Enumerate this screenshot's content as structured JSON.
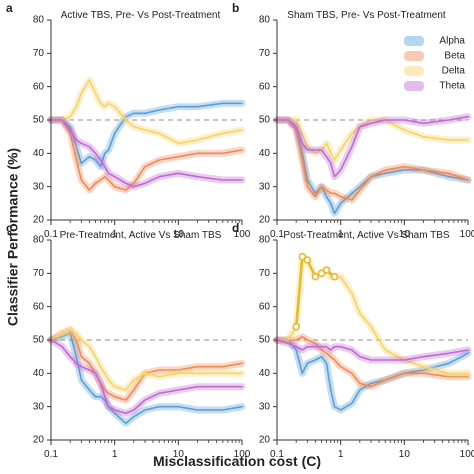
{
  "figure": {
    "ylabel": "Classifier Performance (%)",
    "xlabel": "Misclassification cost (C)"
  },
  "legend": [
    {
      "name": "Alpha",
      "color": "#5a9fd6"
    },
    {
      "name": "Beta",
      "color": "#f08a57"
    },
    {
      "name": "Delta",
      "color": "#f6d36a"
    },
    {
      "name": "Theta",
      "color": "#c06ad4"
    }
  ],
  "chart_data": [
    {
      "type": "line",
      "letter": "a",
      "title": "Active TBS, Pre- Vs Post-Treatment",
      "xscale": "log",
      "xlim": [
        0.1,
        100
      ],
      "ylim": [
        20,
        80
      ],
      "x_tick_labels": [
        "0.1",
        "1",
        "10",
        "100"
      ],
      "y_tick_labels": [
        "20",
        "30",
        "40",
        "50",
        "60",
        "70",
        "80"
      ],
      "chance_level": 50,
      "series": [
        {
          "name": "Alpha",
          "x": [
            0.1,
            0.15,
            0.2,
            0.25,
            0.3,
            0.4,
            0.5,
            0.6,
            0.7,
            0.8,
            1,
            1.5,
            2,
            3,
            5,
            10,
            20,
            50,
            100
          ],
          "y": [
            50,
            50,
            48,
            42,
            37,
            39,
            38,
            36,
            40,
            41,
            46,
            51,
            52,
            52,
            53,
            54,
            54,
            55,
            55
          ]
        },
        {
          "name": "Beta",
          "x": [
            0.1,
            0.15,
            0.2,
            0.25,
            0.3,
            0.4,
            0.5,
            0.6,
            0.7,
            0.8,
            1,
            1.5,
            2,
            3,
            5,
            10,
            20,
            50,
            100
          ],
          "y": [
            50,
            50,
            46,
            38,
            32,
            29,
            31,
            32,
            33,
            32,
            30,
            29,
            31,
            36,
            38,
            39,
            40,
            40,
            41
          ]
        },
        {
          "name": "Delta",
          "x": [
            0.1,
            0.15,
            0.2,
            0.25,
            0.3,
            0.4,
            0.5,
            0.6,
            0.7,
            0.8,
            1,
            1.5,
            2,
            3,
            5,
            10,
            20,
            50,
            100
          ],
          "y": [
            50,
            50,
            51,
            54,
            58,
            62,
            58,
            55,
            54,
            55,
            54,
            50,
            48,
            47,
            46,
            43,
            44,
            46,
            47
          ]
        },
        {
          "name": "Theta",
          "x": [
            0.1,
            0.15,
            0.2,
            0.25,
            0.3,
            0.4,
            0.5,
            0.6,
            0.7,
            0.8,
            1,
            1.5,
            2,
            3,
            5,
            10,
            20,
            50,
            100
          ],
          "y": [
            50,
            50,
            47,
            44,
            43,
            42,
            40,
            38,
            36,
            34,
            33,
            31,
            30,
            31,
            33,
            34,
            33,
            32,
            32
          ]
        }
      ]
    },
    {
      "type": "line",
      "letter": "b",
      "title": "Sham TBS, Pre- Vs Post-Treatment",
      "xscale": "log",
      "xlim": [
        0.1,
        100
      ],
      "ylim": [
        20,
        80
      ],
      "x_tick_labels": [
        "0.1",
        "1",
        "10",
        "100"
      ],
      "y_tick_labels": [
        "20",
        "30",
        "40",
        "50",
        "60",
        "70",
        "80"
      ],
      "chance_level": 50,
      "series": [
        {
          "name": "Alpha",
          "x": [
            0.1,
            0.15,
            0.2,
            0.25,
            0.3,
            0.4,
            0.5,
            0.6,
            0.7,
            0.8,
            1,
            1.5,
            2,
            3,
            5,
            10,
            20,
            50,
            100
          ],
          "y": [
            50,
            50,
            48,
            40,
            32,
            28,
            30,
            27,
            25,
            22,
            25,
            28,
            30,
            33,
            34,
            35,
            35,
            33,
            32
          ]
        },
        {
          "name": "Beta",
          "x": [
            0.1,
            0.15,
            0.2,
            0.25,
            0.3,
            0.4,
            0.5,
            0.6,
            0.7,
            0.8,
            1,
            1.5,
            2,
            3,
            5,
            10,
            20,
            50,
            100
          ],
          "y": [
            50,
            50,
            47,
            38,
            30,
            27,
            30,
            29,
            28,
            28,
            27,
            26,
            29,
            33,
            35,
            36,
            35,
            34,
            32
          ]
        },
        {
          "name": "Delta",
          "x": [
            0.1,
            0.15,
            0.2,
            0.25,
            0.3,
            0.4,
            0.5,
            0.6,
            0.7,
            0.8,
            1,
            1.5,
            2,
            3,
            5,
            10,
            20,
            50,
            100
          ],
          "y": [
            50,
            50,
            50,
            46,
            42,
            40,
            41,
            43,
            40,
            38,
            41,
            46,
            48,
            50,
            50,
            47,
            45,
            44,
            44
          ]
        },
        {
          "name": "Theta",
          "x": [
            0.1,
            0.15,
            0.2,
            0.25,
            0.3,
            0.4,
            0.5,
            0.6,
            0.7,
            0.8,
            1,
            1.5,
            2,
            3,
            5,
            10,
            20,
            50,
            100
          ],
          "y": [
            50,
            50,
            48,
            43,
            41,
            41,
            41,
            39,
            37,
            33,
            35,
            42,
            48,
            49,
            50,
            50,
            49,
            50,
            51
          ]
        }
      ]
    },
    {
      "type": "line",
      "letter": "c",
      "title": "Pre-Treatment, Active Vs Sham TBS",
      "xscale": "log",
      "xlim": [
        0.1,
        100
      ],
      "ylim": [
        20,
        80
      ],
      "x_tick_labels": [
        "0.1",
        "1",
        "10",
        "100"
      ],
      "y_tick_labels": [
        "20",
        "30",
        "40",
        "50",
        "60",
        "70",
        "80"
      ],
      "chance_level": 50,
      "series": [
        {
          "name": "Alpha",
          "x": [
            0.1,
            0.15,
            0.2,
            0.25,
            0.3,
            0.4,
            0.5,
            0.6,
            0.7,
            0.8,
            1,
            1.5,
            2,
            3,
            5,
            10,
            20,
            50,
            100
          ],
          "y": [
            50,
            51,
            52,
            45,
            38,
            35,
            33,
            33,
            32,
            30,
            28,
            25,
            27,
            29,
            30,
            30,
            29,
            29,
            30
          ]
        },
        {
          "name": "Beta",
          "x": [
            0.1,
            0.15,
            0.2,
            0.25,
            0.3,
            0.4,
            0.5,
            0.6,
            0.7,
            0.8,
            1,
            1.5,
            2,
            3,
            5,
            10,
            20,
            50,
            100
          ],
          "y": [
            50,
            52,
            53,
            50,
            45,
            43,
            40,
            37,
            35,
            34,
            33,
            32,
            35,
            40,
            41,
            41,
            42,
            42,
            43
          ]
        },
        {
          "name": "Delta",
          "x": [
            0.1,
            0.15,
            0.2,
            0.25,
            0.3,
            0.4,
            0.5,
            0.6,
            0.7,
            0.8,
            1,
            1.5,
            2,
            3,
            5,
            10,
            20,
            50,
            100
          ],
          "y": [
            50,
            52,
            53,
            52,
            50,
            48,
            45,
            42,
            40,
            38,
            36,
            35,
            38,
            40,
            39,
            40,
            40,
            40,
            40
          ]
        },
        {
          "name": "Theta",
          "x": [
            0.1,
            0.15,
            0.2,
            0.25,
            0.3,
            0.4,
            0.5,
            0.6,
            0.7,
            0.8,
            1,
            1.5,
            2,
            3,
            5,
            10,
            20,
            50,
            100
          ],
          "y": [
            50,
            48,
            45,
            43,
            42,
            41,
            40,
            37,
            33,
            30,
            29,
            28,
            29,
            32,
            34,
            35,
            36,
            36,
            36
          ]
        }
      ]
    },
    {
      "type": "line",
      "letter": "d",
      "title": "Post-Treatment, Active Vs Sham TBS",
      "xscale": "log",
      "xlim": [
        0.1,
        100
      ],
      "ylim": [
        20,
        80
      ],
      "x_tick_labels": [
        "0.1",
        "1",
        "10",
        "100"
      ],
      "y_tick_labels": [
        "20",
        "30",
        "40",
        "50",
        "60",
        "70",
        "80"
      ],
      "chance_level": 50,
      "highlight_series": "Delta",
      "highlight_x": [
        0.2,
        0.25,
        0.3,
        0.4,
        0.5,
        0.6,
        0.8
      ],
      "series": [
        {
          "name": "Alpha",
          "x": [
            0.1,
            0.15,
            0.2,
            0.25,
            0.3,
            0.4,
            0.5,
            0.6,
            0.7,
            0.8,
            1,
            1.5,
            2,
            3,
            5,
            10,
            20,
            50,
            100
          ],
          "y": [
            50,
            50,
            47,
            40,
            43,
            44,
            45,
            43,
            35,
            30,
            29,
            31,
            35,
            37,
            38,
            40,
            41,
            43,
            46
          ]
        },
        {
          "name": "Beta",
          "x": [
            0.1,
            0.15,
            0.2,
            0.25,
            0.3,
            0.4,
            0.5,
            0.6,
            0.7,
            0.8,
            1,
            1.5,
            2,
            3,
            5,
            10,
            20,
            50,
            100
          ],
          "y": [
            50,
            50,
            50,
            51,
            50,
            49,
            47,
            46,
            45,
            44,
            42,
            40,
            37,
            36,
            38,
            40,
            40,
            39,
            39
          ]
        },
        {
          "name": "Delta",
          "x": [
            0.1,
            0.15,
            0.2,
            0.25,
            0.3,
            0.4,
            0.5,
            0.6,
            0.7,
            0.8,
            1,
            1.5,
            2,
            3,
            5,
            10,
            20,
            50,
            100
          ],
          "y": [
            50,
            50,
            54,
            75,
            74,
            69,
            70,
            71,
            69,
            69,
            69,
            64,
            58,
            54,
            47,
            44,
            42,
            40,
            40
          ]
        },
        {
          "name": "Theta",
          "x": [
            0.1,
            0.15,
            0.2,
            0.25,
            0.3,
            0.4,
            0.5,
            0.6,
            0.7,
            0.8,
            1,
            1.5,
            2,
            3,
            5,
            10,
            20,
            50,
            100
          ],
          "y": [
            50,
            49,
            48,
            47,
            48,
            48,
            48,
            48,
            47,
            48,
            48,
            47,
            45,
            44,
            44,
            44,
            45,
            46,
            47
          ]
        }
      ]
    }
  ]
}
